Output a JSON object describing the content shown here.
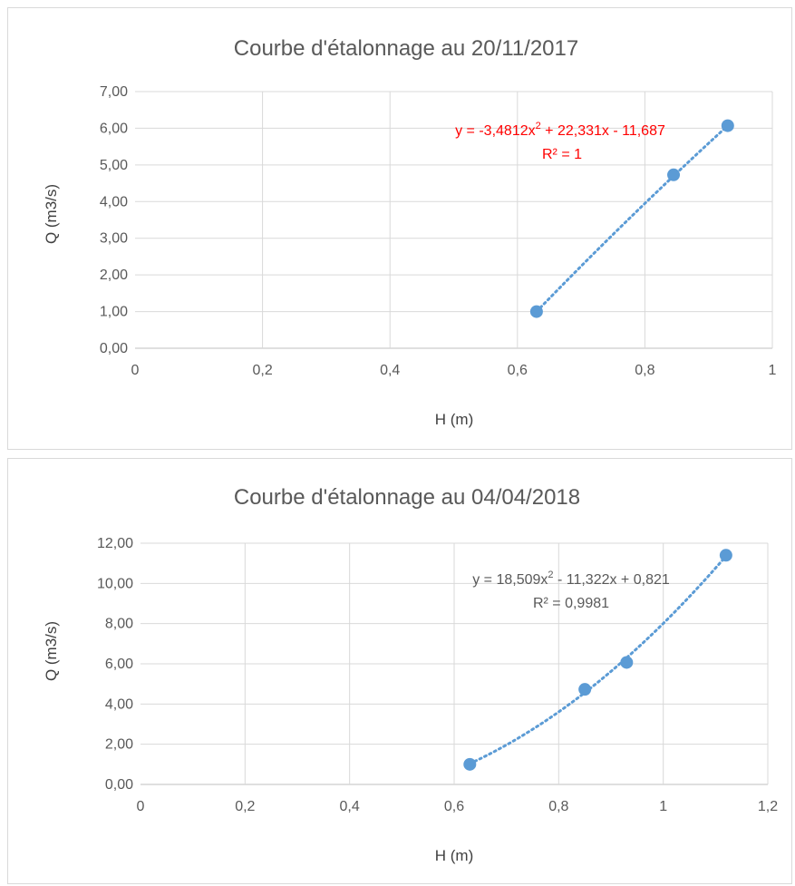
{
  "chart_data": [
    {
      "type": "scatter",
      "title": "Courbe d'étalonnage au 20/11/2017",
      "xlabel": "H (m)",
      "ylabel": "Q (m3/s)",
      "xlim": [
        0,
        1
      ],
      "ylim": [
        0,
        7
      ],
      "x_ticks": [
        "0",
        "0,2",
        "0,4",
        "0,6",
        "0,8",
        "1"
      ],
      "y_ticks": [
        "0,00",
        "1,00",
        "2,00",
        "3,00",
        "4,00",
        "5,00",
        "6,00",
        "7,00"
      ],
      "grid": "vertical and horizontal",
      "series": [
        {
          "x": [
            0.63,
            0.845,
            0.93
          ],
          "y": [
            1.0,
            4.73,
            6.07
          ]
        }
      ],
      "trendline": {
        "type": "polynomial",
        "order": 2,
        "coefficients": [
          -3.4812,
          22.331,
          -11.687
        ],
        "x_range": [
          0.63,
          0.93
        ]
      },
      "annotation": {
        "equation_parts": [
          "y = -3,4812x",
          "2",
          " + 22,331x - 11,687"
        ],
        "r2": "R² = 1",
        "color": "#ff0000"
      }
    },
    {
      "type": "scatter",
      "title": "Courbe d'étalonnage au 04/04/2018",
      "xlabel": "H (m)",
      "ylabel": "Q (m3/s)",
      "xlim": [
        0,
        1.2
      ],
      "ylim": [
        0,
        12
      ],
      "x_ticks": [
        "0",
        "0,2",
        "0,4",
        "0,6",
        "0,8",
        "1",
        "1,2"
      ],
      "y_ticks": [
        "0,00",
        "2,00",
        "4,00",
        "6,00",
        "8,00",
        "10,00",
        "12,00"
      ],
      "grid": "vertical and horizontal",
      "series": [
        {
          "x": [
            0.63,
            0.85,
            0.93,
            1.12
          ],
          "y": [
            1.0,
            4.73,
            6.07,
            11.4
          ]
        }
      ],
      "trendline": {
        "type": "polynomial",
        "order": 2,
        "coefficients": [
          18.509,
          -11.322,
          0.821
        ],
        "x_range": [
          0.63,
          1.12
        ]
      },
      "annotation": {
        "equation_parts": [
          "y = 18,509x",
          "2",
          " - 11,322x + 0,821"
        ],
        "r2": "R² = 0,9981",
        "color": "#595959"
      }
    }
  ]
}
